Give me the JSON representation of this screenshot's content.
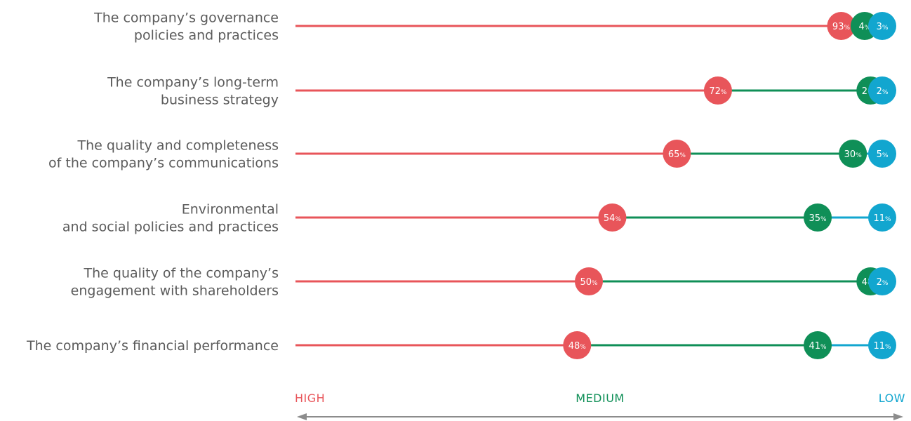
{
  "chart_data": {
    "type": "dot-plot",
    "categories": [
      "The company’s governance policies and practices",
      "The company’s long-term business strategy",
      "The quality and completeness of the company’s communications",
      "Environmental and social policies and practices",
      "The quality of the company’s engagement with shareholders",
      "The company’s financial performance"
    ],
    "category_lines": [
      [
        "The company’s governance",
        "policies and practices"
      ],
      [
        "The company’s long-term",
        "business strategy"
      ],
      [
        "The quality and completeness",
        "of the company’s communications"
      ],
      [
        "Environmental",
        "and social policies and practices"
      ],
      [
        "The quality of the company’s",
        "engagement with shareholders"
      ],
      [
        "The company’s financial performance"
      ]
    ],
    "series": [
      {
        "name": "HIGH",
        "color": "#e8555a",
        "values": [
          93,
          72,
          65,
          54,
          50,
          48
        ]
      },
      {
        "name": "MEDIUM",
        "color": "#0f8f57",
        "values": [
          4,
          26,
          30,
          35,
          48,
          41
        ]
      },
      {
        "name": "LOW",
        "color": "#12a6cf",
        "values": [
          3,
          2,
          5,
          11,
          2,
          11
        ]
      }
    ],
    "value_suffix": "%",
    "scale_labels": {
      "high": "HIGH",
      "medium": "MEDIUM",
      "low": "LOW"
    },
    "axis_color": "#8c8c8c",
    "label_color": "#5b5b5b",
    "grid": false
  }
}
